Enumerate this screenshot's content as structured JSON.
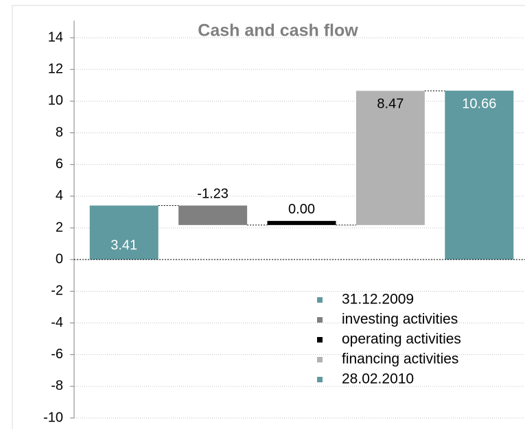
{
  "chart_data": {
    "type": "waterfall",
    "title": "Cash and cash flow",
    "categories": [
      "31.12.2009",
      "investing activities",
      "operating activities",
      "financing activities",
      "28.02.2010"
    ],
    "values": [
      3.41,
      -1.23,
      0.0,
      8.47,
      10.66
    ],
    "value_labels": [
      "3.41",
      "-1.23",
      "0.00",
      "8.47",
      "10.66"
    ],
    "colors": [
      "#5f9aa0",
      "#808080",
      "#000000",
      "#b2b2b2",
      "#5f9aa0"
    ],
    "total_bars": [
      true,
      false,
      false,
      false,
      true
    ],
    "ylim": [
      -10,
      14
    ],
    "yticks": [
      -10,
      -8,
      -6,
      -4,
      -2,
      0,
      2,
      4,
      6,
      8,
      10,
      12,
      14
    ],
    "grid": true,
    "legend": "lower right"
  }
}
